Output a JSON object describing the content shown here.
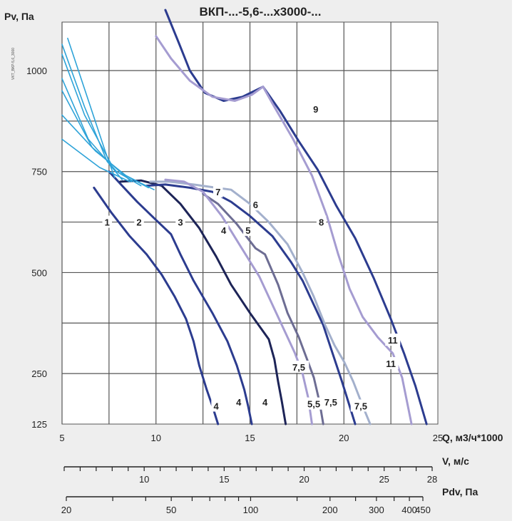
{
  "chart_data": {
    "type": "line",
    "title": "ВКП-...-5,6-...х3000-...",
    "side_label": "VKT_BKP-5,6_3000",
    "xlabel": "Q, м3/ч*1000",
    "ylabel": "Pv, Па",
    "xlim": [
      5,
      25
    ],
    "ylim": [
      125,
      1150
    ],
    "x_ticks": [
      "5",
      "10",
      "15",
      "20",
      "25"
    ],
    "y_ticks": [
      "125",
      "250",
      "500",
      "750",
      "1000"
    ],
    "grid": true,
    "secondary_axes": [
      {
        "label": "V, м/с",
        "ticks": [
          "10",
          "15",
          "20",
          "25",
          "28"
        ],
        "range": [
          5,
          28
        ]
      },
      {
        "label": "Pdv, Па",
        "ticks": [
          "20",
          "50",
          "100",
          "200",
          "300",
          "400",
          "450"
        ],
        "range": [
          20,
          450
        ]
      }
    ],
    "colors": {
      "dark_blue": "#2c3c8f",
      "navy": "#1d2457",
      "steel": "#6d6d93",
      "light_violet": "#a59cd1",
      "light_gray_blue": "#a3b0cc",
      "cyan": "#2ea3d8",
      "grid": "#555555",
      "panel": "#eeeeee"
    },
    "series": [
      {
        "color": "dark_blue",
        "labels": [
          {
            "text": "1",
            "x": 7.4,
            "y": 625
          },
          {
            "text": "4",
            "x": 13.2,
            "y": 170
          }
        ],
        "points": [
          [
            6.7,
            710
          ],
          [
            7.6,
            650
          ],
          [
            8.6,
            590
          ],
          [
            9.5,
            545
          ],
          [
            10.3,
            495
          ],
          [
            11.0,
            440
          ],
          [
            11.6,
            385
          ],
          [
            12.0,
            330
          ],
          [
            12.3,
            270
          ],
          [
            12.7,
            210
          ],
          [
            13.0,
            170
          ],
          [
            13.3,
            125
          ]
        ]
      },
      {
        "color": "dark_blue",
        "labels": [
          {
            "text": "2",
            "x": 9.1,
            "y": 625
          },
          {
            "text": "4",
            "x": 14.4,
            "y": 180
          }
        ],
        "points": [
          [
            7.5,
            750
          ],
          [
            8.2,
            715
          ],
          [
            9.0,
            675
          ],
          [
            10.0,
            630
          ],
          [
            10.8,
            595
          ],
          [
            11.3,
            545
          ],
          [
            12.0,
            480
          ],
          [
            13.0,
            400
          ],
          [
            13.8,
            330
          ],
          [
            14.3,
            270
          ],
          [
            14.7,
            210
          ],
          [
            14.9,
            170
          ],
          [
            15.1,
            125
          ]
        ]
      },
      {
        "color": "navy",
        "labels": [
          {
            "text": "3",
            "x": 11.3,
            "y": 625
          },
          {
            "text": "4",
            "x": 15.8,
            "y": 180
          }
        ],
        "points": [
          [
            8.1,
            725
          ],
          [
            9.2,
            728
          ],
          [
            10.3,
            715
          ],
          [
            11.3,
            670
          ],
          [
            12.3,
            610
          ],
          [
            13.2,
            540
          ],
          [
            14.0,
            470
          ],
          [
            15.0,
            400
          ],
          [
            16.0,
            335
          ],
          [
            16.3,
            285
          ],
          [
            16.5,
            230
          ],
          [
            16.7,
            180
          ],
          [
            16.9,
            125
          ]
        ]
      },
      {
        "color": "dark_blue",
        "labels": [
          {
            "text": "6",
            "x": 15.3,
            "y": 668
          },
          {
            "text": "7,5",
            "x": 19.3,
            "y": 180
          }
        ],
        "points": [
          [
            9.5,
            715
          ],
          [
            10.5,
            718
          ],
          [
            11.8,
            710
          ],
          [
            13.0,
            700
          ],
          [
            14.0,
            675
          ],
          [
            15.0,
            640
          ],
          [
            16.2,
            590
          ],
          [
            17.2,
            525
          ],
          [
            17.8,
            480
          ],
          [
            18.3,
            430
          ],
          [
            18.9,
            370
          ],
          [
            19.4,
            300
          ],
          [
            19.9,
            230
          ],
          [
            20.3,
            170
          ],
          [
            20.6,
            125
          ]
        ]
      },
      {
        "color": "steel",
        "labels": [
          {
            "text": "4",
            "x": 13.6,
            "y": 605
          },
          {
            "text": "5",
            "x": 14.9,
            "y": 605
          },
          {
            "text": "5,5",
            "x": 18.4,
            "y": 175
          }
        ],
        "points": [
          [
            12.5,
            695
          ],
          [
            13.3,
            670
          ],
          [
            14.3,
            620
          ],
          [
            15.3,
            560
          ],
          [
            15.8,
            545
          ],
          [
            16.5,
            470
          ],
          [
            17.0,
            400
          ],
          [
            17.6,
            340
          ],
          [
            18.0,
            290
          ],
          [
            18.4,
            240
          ],
          [
            18.7,
            180
          ],
          [
            18.9,
            125
          ]
        ]
      },
      {
        "color": "light_gray_blue",
        "labels": [
          {
            "text": "7",
            "x": 13.3,
            "y": 700
          },
          {
            "text": "7,5",
            "x": 20.9,
            "y": 170
          }
        ],
        "points": [
          [
            9.7,
            725
          ],
          [
            10.7,
            725
          ],
          [
            12.0,
            718
          ],
          [
            13.2,
            710
          ],
          [
            14.0,
            705
          ],
          [
            15.0,
            670
          ],
          [
            16.0,
            625
          ],
          [
            17.0,
            570
          ],
          [
            17.8,
            500
          ],
          [
            18.4,
            440
          ],
          [
            19.0,
            370
          ],
          [
            19.5,
            320
          ],
          [
            20.0,
            280
          ],
          [
            20.5,
            230
          ],
          [
            21.0,
            170
          ],
          [
            21.4,
            125
          ]
        ]
      },
      {
        "color": "light_violet",
        "labels": [
          {
            "text": "7,5",
            "x": 17.6,
            "y": 266
          }
        ],
        "points": [
          [
            10.5,
            730
          ],
          [
            11.5,
            725
          ],
          [
            12.5,
            700
          ],
          [
            13.5,
            640
          ],
          [
            14.5,
            565
          ],
          [
            15.5,
            490
          ],
          [
            16.2,
            420
          ],
          [
            16.8,
            360
          ],
          [
            17.4,
            300
          ],
          [
            17.8,
            250
          ],
          [
            18.1,
            190
          ],
          [
            18.3,
            125
          ]
        ]
      },
      {
        "color": "dark_blue",
        "labels": [
          {
            "text": "9",
            "x": 18.5,
            "y": 905
          },
          {
            "text": "11",
            "x": 22.6,
            "y": 333
          }
        ],
        "points": [
          [
            10.5,
            1150
          ],
          [
            11.2,
            1070
          ],
          [
            11.8,
            1000
          ],
          [
            12.6,
            945
          ],
          [
            13.6,
            925
          ],
          [
            14.6,
            935
          ],
          [
            15.7,
            960
          ],
          [
            16.6,
            900
          ],
          [
            17.6,
            825
          ],
          [
            18.6,
            755
          ],
          [
            19.6,
            665
          ],
          [
            20.6,
            585
          ],
          [
            21.6,
            485
          ],
          [
            22.5,
            385
          ],
          [
            23.2,
            300
          ],
          [
            23.8,
            220
          ],
          [
            24.4,
            125
          ]
        ]
      },
      {
        "color": "light_violet",
        "labels": [
          {
            "text": "8",
            "x": 18.8,
            "y": 625
          },
          {
            "text": "11",
            "x": 22.5,
            "y": 275
          }
        ],
        "points": [
          [
            10.0,
            1085
          ],
          [
            10.8,
            1030
          ],
          [
            11.8,
            975
          ],
          [
            13.0,
            935
          ],
          [
            14.2,
            925
          ],
          [
            15.1,
            940
          ],
          [
            15.7,
            960
          ],
          [
            16.3,
            910
          ],
          [
            17.3,
            830
          ],
          [
            18.3,
            740
          ],
          [
            19.1,
            640
          ],
          [
            19.7,
            545
          ],
          [
            20.3,
            460
          ],
          [
            21.0,
            390
          ],
          [
            21.8,
            340
          ],
          [
            22.6,
            300
          ],
          [
            23.1,
            240
          ],
          [
            23.6,
            125
          ]
        ]
      },
      {
        "color": "cyan",
        "points": [
          [
            5.3,
            1080
          ],
          [
            6.3,
            940
          ],
          [
            7.3,
            800
          ],
          [
            7.8,
            735
          ]
        ]
      },
      {
        "color": "cyan",
        "points": [
          [
            5.0,
            1065
          ],
          [
            6.2,
            910
          ],
          [
            7.4,
            775
          ],
          [
            8.2,
            730
          ]
        ]
      },
      {
        "color": "cyan",
        "points": [
          [
            5.0,
            1040
          ],
          [
            6.2,
            890
          ],
          [
            7.6,
            770
          ],
          [
            8.7,
            725
          ]
        ]
      },
      {
        "color": "cyan",
        "points": [
          [
            5.0,
            980
          ],
          [
            6.4,
            830
          ],
          [
            7.9,
            750
          ],
          [
            9.2,
            715
          ]
        ]
      },
      {
        "color": "cyan",
        "points": [
          [
            5.0,
            950
          ],
          [
            6.6,
            810
          ],
          [
            8.2,
            745
          ],
          [
            9.6,
            710
          ]
        ]
      },
      {
        "color": "cyan",
        "points": [
          [
            5.0,
            890
          ],
          [
            6.8,
            800
          ],
          [
            8.4,
            740
          ],
          [
            9.9,
            705
          ]
        ]
      },
      {
        "color": "cyan",
        "points": [
          [
            5.0,
            830
          ],
          [
            7.0,
            760
          ],
          [
            8.6,
            725
          ]
        ]
      }
    ]
  }
}
